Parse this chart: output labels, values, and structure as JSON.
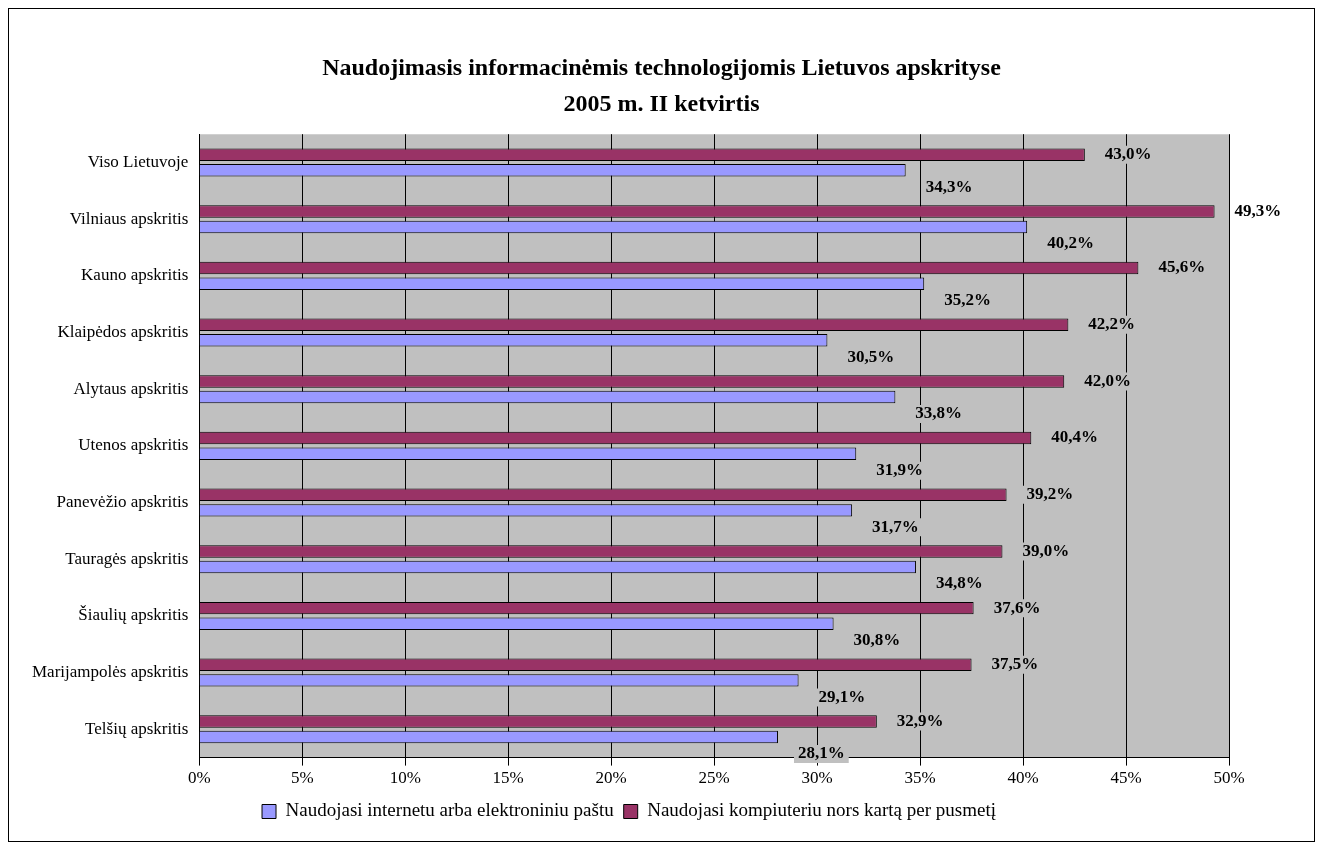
{
  "chart_data": {
    "type": "bar",
    "orientation": "horizontal",
    "title": "Naudojimasis informacinėmis technologijomis Lietuvos apskrityse",
    "subtitle": "2005 m. II ketvirtis",
    "categories": [
      "Viso Lietuvoje",
      "Vilniaus apskritis",
      "Kauno apskritis",
      "Klaipėdos apskritis",
      "Alytaus apskritis",
      "Utenos apskritis",
      "Panevėžio apskritis",
      "Tauragės apskritis",
      "Šiaulių apskritis",
      "Marijampolės apskritis",
      "Telšių apskritis"
    ],
    "series": [
      {
        "name": "Naudojasi internetu arba elektroniniu paštu",
        "color": "#9999ff",
        "values": [
          34.3,
          40.2,
          35.2,
          30.5,
          33.8,
          31.9,
          31.7,
          34.8,
          30.8,
          29.1,
          28.1
        ],
        "value_labels": [
          "34,3%",
          "40,2%",
          "35,2%",
          "30,5%",
          "33,8%",
          "31,9%",
          "31,7%",
          "34,8%",
          "30,8%",
          "29,1%",
          "28,1%"
        ]
      },
      {
        "name": "Naudojasi kompiuteriu nors kartą per pusmetį",
        "color": "#993366",
        "values": [
          43.0,
          49.3,
          45.6,
          42.2,
          42.0,
          40.4,
          39.2,
          39.0,
          37.6,
          37.5,
          32.9
        ],
        "value_labels": [
          "43,0%",
          "49,3%",
          "45,6%",
          "42,2%",
          "42,0%",
          "40,4%",
          "39,2%",
          "39,0%",
          "37,6%",
          "37,5%",
          "32,9%"
        ]
      }
    ],
    "xlim": [
      0,
      50
    ],
    "xticks": [
      {
        "value": 0,
        "label": "0%"
      },
      {
        "value": 5,
        "label": "5%"
      },
      {
        "value": 10,
        "label": "10%"
      },
      {
        "value": 15,
        "label": "15%"
      },
      {
        "value": 20,
        "label": "20%"
      },
      {
        "value": 25,
        "label": "25%"
      },
      {
        "value": 30,
        "label": "30%"
      },
      {
        "value": 35,
        "label": "35%"
      },
      {
        "value": 40,
        "label": "40%"
      },
      {
        "value": 45,
        "label": "45%"
      },
      {
        "value": 50,
        "label": "50%"
      }
    ],
    "grid": "x",
    "legend": "bottom"
  }
}
